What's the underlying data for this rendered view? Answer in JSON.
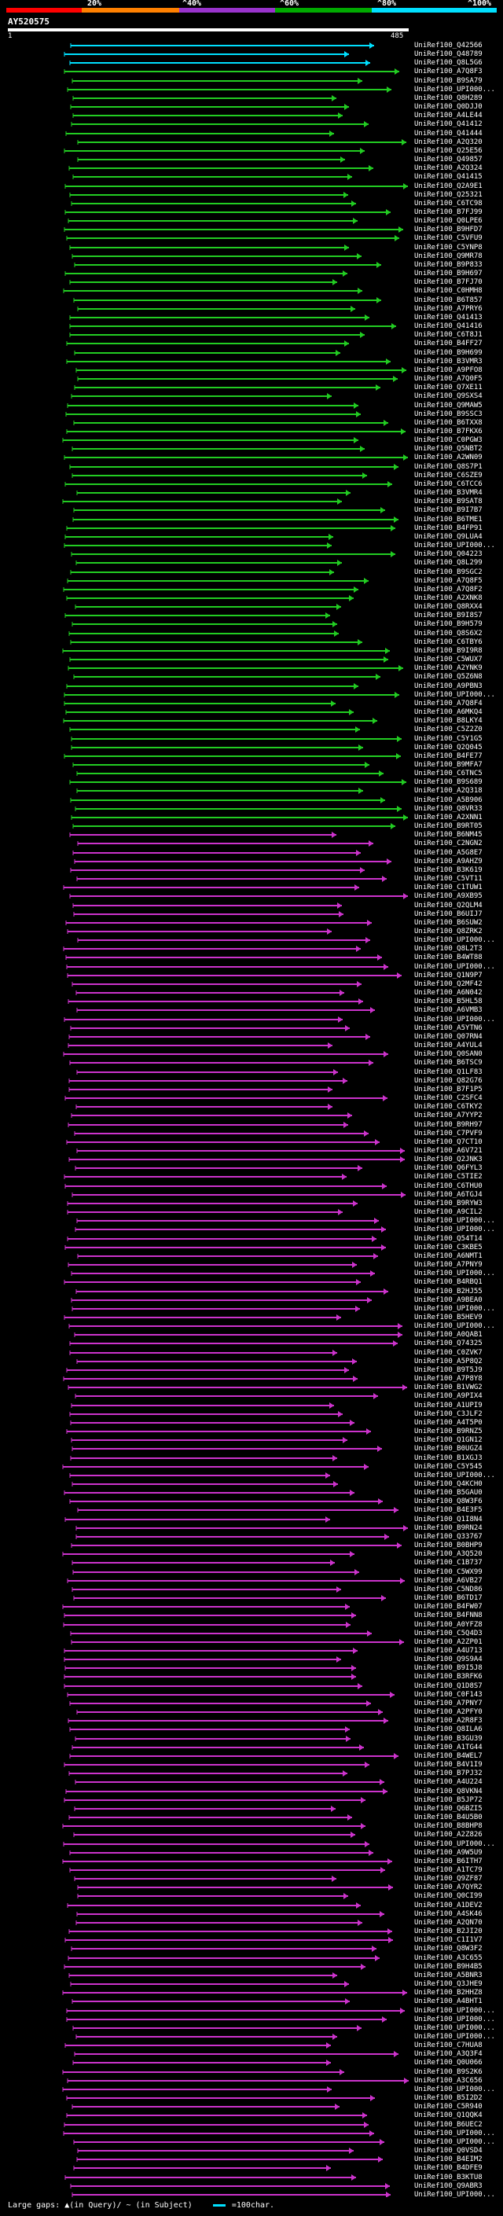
{
  "legend": {
    "ticks": [
      "20%",
      "^40%",
      "^60%",
      "^80%",
      "^100%"
    ],
    "colors": [
      "#ff0000",
      "#ff8000",
      "#9933cc",
      "#00aa00",
      "#00e0ff"
    ]
  },
  "query": {
    "id": "AY520575",
    "start": "1",
    "end": "485"
  },
  "footer": {
    "large_gaps": "Large gaps: ▲(in Query)/ ~ (in Subject)",
    "scale": "=100char."
  },
  "colors": {
    "cyan": "#00e0ff",
    "green": "#22cc22",
    "purple": "#cc33cc",
    "background": "#000000"
  },
  "hits": [
    {
      "label": "UniRef100_Q42566",
      "c": "cyan"
    },
    {
      "label": "UniRef100_Q48789",
      "c": "cyan"
    },
    {
      "label": "UniRef100_Q8L5G6",
      "c": "cyan"
    },
    {
      "label": "UniRef100_A7Q8F3",
      "c": "green"
    },
    {
      "label": "UniRef100_B9SA79",
      "c": "green"
    },
    {
      "label": "UniRef100_UPI000...",
      "c": "green"
    },
    {
      "label": "UniRef100_Q8H289",
      "c": "green"
    },
    {
      "label": "UniRef100_Q0DJJ0",
      "c": "green"
    },
    {
      "label": "UniRef100_A4LE44",
      "c": "green"
    },
    {
      "label": "UniRef100_Q41412",
      "c": "green"
    },
    {
      "label": "UniRef100_Q41444",
      "c": "green"
    },
    {
      "label": "UniRef100_A2Q320",
      "c": "green"
    },
    {
      "label": "UniRef100_Q25E56",
      "c": "green"
    },
    {
      "label": "UniRef100_Q49857",
      "c": "green"
    },
    {
      "label": "UniRef100_A2Q324",
      "c": "green"
    },
    {
      "label": "UniRef100_Q41415",
      "c": "green"
    },
    {
      "label": "UniRef100_Q2A9E1",
      "c": "green"
    },
    {
      "label": "UniRef100_Q25321",
      "c": "green"
    },
    {
      "label": "UniRef100_C6TC98",
      "c": "green"
    },
    {
      "label": "UniRef100_B7FJ99",
      "c": "green"
    },
    {
      "label": "UniRef100_Q0LPE6",
      "c": "green"
    },
    {
      "label": "UniRef100_B9HFD7",
      "c": "green"
    },
    {
      "label": "UniRef100_C5VFU9",
      "c": "green"
    },
    {
      "label": "UniRef100_C5YNP8",
      "c": "green"
    },
    {
      "label": "UniRef100_Q9MR78",
      "c": "green"
    },
    {
      "label": "UniRef100_B9P833",
      "c": "green"
    },
    {
      "label": "UniRef100_B9H697",
      "c": "green"
    },
    {
      "label": "UniRef100_B7FJ70",
      "c": "green"
    },
    {
      "label": "UniRef100_C0HMH8",
      "c": "green"
    },
    {
      "label": "UniRef100_B6T857",
      "c": "green"
    },
    {
      "label": "UniRef100_A7PRY6",
      "c": "green"
    },
    {
      "label": "UniRef100_Q41413",
      "c": "green"
    },
    {
      "label": "UniRef100_Q41416",
      "c": "green"
    },
    {
      "label": "UniRef100_C6T8J1",
      "c": "green"
    },
    {
      "label": "UniRef100_B4FF27",
      "c": "green"
    },
    {
      "label": "UniRef100_B9H699",
      "c": "green"
    },
    {
      "label": "UniRef100_B3VMR3",
      "c": "green"
    },
    {
      "label": "UniRef100_A9PFO8",
      "c": "green"
    },
    {
      "label": "UniRef100_A7Q0F5",
      "c": "green"
    },
    {
      "label": "UniRef100_Q7XE11",
      "c": "green"
    },
    {
      "label": "UniRef100_Q9SXS4",
      "c": "green"
    },
    {
      "label": "UniRef100_Q9MAW5",
      "c": "green"
    },
    {
      "label": "UniRef100_B9SSC3",
      "c": "green"
    },
    {
      "label": "UniRef100_B6TXX8",
      "c": "green"
    },
    {
      "label": "UniRef100_B7FKX6",
      "c": "green"
    },
    {
      "label": "UniRef100_C0PGW3",
      "c": "green"
    },
    {
      "label": "UniRef100_Q5NBT2",
      "c": "green"
    },
    {
      "label": "UniRef100_A2WN09",
      "c": "green"
    },
    {
      "label": "UniRef100_Q8S7P1",
      "c": "green"
    },
    {
      "label": "UniRef100_C6SZE9",
      "c": "green"
    },
    {
      "label": "UniRef100_C6TCC6",
      "c": "green"
    },
    {
      "label": "UniRef100_B3VMR4",
      "c": "green"
    },
    {
      "label": "UniRef100_B9SAT8",
      "c": "green"
    },
    {
      "label": "UniRef100_B9I7B7",
      "c": "green"
    },
    {
      "label": "UniRef100_B6TME1",
      "c": "green"
    },
    {
      "label": "UniRef100_B4FP91",
      "c": "green"
    },
    {
      "label": "UniRef100_Q9LUA4",
      "c": "green"
    },
    {
      "label": "UniRef100_UPI000...",
      "c": "green"
    },
    {
      "label": "UniRef100_Q04223",
      "c": "green"
    },
    {
      "label": "UniRef100_Q8L299",
      "c": "green"
    },
    {
      "label": "UniRef100_B9SGC2",
      "c": "green"
    },
    {
      "label": "UniRef100_A7Q8F5",
      "c": "green"
    },
    {
      "label": "UniRef100_A7Q8F2",
      "c": "green"
    },
    {
      "label": "UniRef100_A2XNK8",
      "c": "green"
    },
    {
      "label": "UniRef100_Q8RXX4",
      "c": "green"
    },
    {
      "label": "UniRef100_B9I8S7",
      "c": "green"
    },
    {
      "label": "UniRef100_B9H579",
      "c": "green"
    },
    {
      "label": "UniRef100_Q8S6X2",
      "c": "green"
    },
    {
      "label": "UniRef100_C6TBY6",
      "c": "green"
    },
    {
      "label": "UniRef100_B9I9R8",
      "c": "green"
    },
    {
      "label": "UniRef100_C5WUX7",
      "c": "green"
    },
    {
      "label": "UniRef100_A2YNK9",
      "c": "green"
    },
    {
      "label": "UniRef100_Q5Z6N8",
      "c": "green"
    },
    {
      "label": "UniRef100_A9PBN3",
      "c": "green"
    },
    {
      "label": "UniRef100_UPI000...",
      "c": "green"
    },
    {
      "label": "UniRef100_A7Q8F4",
      "c": "green"
    },
    {
      "label": "UniRef100_A6MKQ4",
      "c": "green"
    },
    {
      "label": "UniRef100_B8LKY4",
      "c": "green"
    },
    {
      "label": "UniRef100_C5Z2Z0",
      "c": "green"
    },
    {
      "label": "UniRef100_C5Y1G5",
      "c": "green"
    },
    {
      "label": "UniRef100_Q2Q045",
      "c": "green"
    },
    {
      "label": "UniRef100_B4FE77",
      "c": "green"
    },
    {
      "label": "UniRef100_B9MFA7",
      "c": "green"
    },
    {
      "label": "UniRef100_C6TNC5",
      "c": "green"
    },
    {
      "label": "UniRef100_B9S689",
      "c": "green"
    },
    {
      "label": "UniRef100_A2Q318",
      "c": "green"
    },
    {
      "label": "UniRef100_A5B906",
      "c": "green"
    },
    {
      "label": "UniRef100_Q8VR33",
      "c": "green"
    },
    {
      "label": "UniRef100_A2XNN1",
      "c": "green"
    },
    {
      "label": "UniRef100_B9RT05",
      "c": "green"
    },
    {
      "label": "UniRef100_B6NM45",
      "c": "purple"
    },
    {
      "label": "UniRef100_C2NGN2",
      "c": "purple"
    },
    {
      "label": "UniRef100_A5G8E7",
      "c": "purple"
    },
    {
      "label": "UniRef100_A9AHZ9",
      "c": "purple"
    },
    {
      "label": "UniRef100_B3K619",
      "c": "purple"
    },
    {
      "label": "UniRef100_C5VT11",
      "c": "purple"
    },
    {
      "label": "UniRef100_C1TUW1",
      "c": "purple"
    },
    {
      "label": "UniRef100_A9XB95",
      "c": "purple"
    },
    {
      "label": "UniRef100_Q2QLM4",
      "c": "purple"
    },
    {
      "label": "UniRef100_B6UIJ7",
      "c": "purple"
    },
    {
      "label": "UniRef100_B6SUW2",
      "c": "purple"
    },
    {
      "label": "UniRef100_Q8ZRK2",
      "c": "purple"
    },
    {
      "label": "UniRef100_UPI000...",
      "c": "purple"
    },
    {
      "label": "UniRef100_Q8L2T3",
      "c": "purple"
    },
    {
      "label": "UniRef100_B4WT88",
      "c": "purple"
    },
    {
      "label": "UniRef100_UPI000...",
      "c": "purple"
    },
    {
      "label": "UniRef100_Q1N9P7",
      "c": "purple"
    },
    {
      "label": "UniRef100_Q2MF42",
      "c": "purple"
    },
    {
      "label": "UniRef100_A6N042",
      "c": "purple"
    },
    {
      "label": "UniRef100_B5HL58",
      "c": "purple"
    },
    {
      "label": "UniRef100_A6VMB3",
      "c": "purple"
    },
    {
      "label": "UniRef100_UPI000...",
      "c": "purple"
    },
    {
      "label": "UniRef100_A5YTN6",
      "c": "purple"
    },
    {
      "label": "UniRef100_Q07RN4",
      "c": "purple"
    },
    {
      "label": "UniRef100_A4YUL4",
      "c": "purple"
    },
    {
      "label": "UniRef100_Q0SAN0",
      "c": "purple"
    },
    {
      "label": "UniRef100_B6TSC9",
      "c": "purple"
    },
    {
      "label": "UniRef100_Q1LF83",
      "c": "purple"
    },
    {
      "label": "UniRef100_Q82G76",
      "c": "purple"
    },
    {
      "label": "UniRef100_B7F1P5",
      "c": "purple"
    },
    {
      "label": "UniRef100_C2SFC4",
      "c": "purple"
    },
    {
      "label": "UniRef100_C6TKY2",
      "c": "purple"
    },
    {
      "label": "UniRef100_A7YYP2",
      "c": "purple"
    },
    {
      "label": "UniRef100_B9RH97",
      "c": "purple"
    },
    {
      "label": "UniRef100_C7PVF9",
      "c": "purple"
    },
    {
      "label": "UniRef100_Q7CT10",
      "c": "purple"
    },
    {
      "label": "UniRef100_A6V721",
      "c": "purple"
    },
    {
      "label": "UniRef100_Q2JNK3",
      "c": "purple"
    },
    {
      "label": "UniRef100_Q6FYL3",
      "c": "purple"
    },
    {
      "label": "UniRef100_C5TIE2",
      "c": "purple"
    },
    {
      "label": "UniRef100_C6THU0",
      "c": "purple"
    },
    {
      "label": "UniRef100_A6TGJ4",
      "c": "purple"
    },
    {
      "label": "UniRef100_B9RYW3",
      "c": "purple"
    },
    {
      "label": "UniRef100_A9CIL2",
      "c": "purple"
    },
    {
      "label": "UniRef100_UPI000...",
      "c": "purple"
    },
    {
      "label": "UniRef100_UPI000...",
      "c": "purple"
    },
    {
      "label": "UniRef100_Q54T14",
      "c": "purple"
    },
    {
      "label": "UniRef100_C3KBE5",
      "c": "purple"
    },
    {
      "label": "UniRef100_A6NMT1",
      "c": "purple"
    },
    {
      "label": "UniRef100_A7PNY9",
      "c": "purple"
    },
    {
      "label": "UniRef100_UPI000...",
      "c": "purple"
    },
    {
      "label": "UniRef100_B4RBQ1",
      "c": "purple"
    },
    {
      "label": "UniRef100_B2HJ55",
      "c": "purple"
    },
    {
      "label": "UniRef100_A9BEA0",
      "c": "purple"
    },
    {
      "label": "UniRef100_UPI000...",
      "c": "purple"
    },
    {
      "label": "UniRef100_B5HEV9",
      "c": "purple"
    },
    {
      "label": "UniRef100_UPI000...",
      "c": "purple"
    },
    {
      "label": "UniRef100_A0QAB1",
      "c": "purple"
    },
    {
      "label": "UniRef100_Q74325",
      "c": "purple"
    },
    {
      "label": "UniRef100_C0ZVK7",
      "c": "purple"
    },
    {
      "label": "UniRef100_A5P8Q2",
      "c": "purple"
    },
    {
      "label": "UniRef100_B9T5J9",
      "c": "purple"
    },
    {
      "label": "UniRef100_A7P8Y8",
      "c": "purple"
    },
    {
      "label": "UniRef100_B1VWG2",
      "c": "purple"
    },
    {
      "label": "UniRef100_A9PIX4",
      "c": "purple"
    },
    {
      "label": "UniRef100_A1UPI9",
      "c": "purple"
    },
    {
      "label": "UniRef100_C3JLF2",
      "c": "purple"
    },
    {
      "label": "UniRef100_A4T5P0",
      "c": "purple"
    },
    {
      "label": "UniRef100_B9RNZ5",
      "c": "purple"
    },
    {
      "label": "UniRef100_Q1GN12",
      "c": "purple"
    },
    {
      "label": "UniRef100_B0UGZ4",
      "c": "purple"
    },
    {
      "label": "UniRef100_B1XGJ3",
      "c": "purple"
    },
    {
      "label": "UniRef100_C5Y545",
      "c": "purple"
    },
    {
      "label": "UniRef100_UPI000...",
      "c": "purple"
    },
    {
      "label": "UniRef100_Q4KCH0",
      "c": "purple"
    },
    {
      "label": "UniRef100_B5GAU0",
      "c": "purple"
    },
    {
      "label": "UniRef100_Q8W3F6",
      "c": "purple"
    },
    {
      "label": "UniRef100_B4E3F5",
      "c": "purple"
    },
    {
      "label": "UniRef100_Q1I8N4",
      "c": "purple"
    },
    {
      "label": "UniRef100_B9RN24",
      "c": "purple"
    },
    {
      "label": "UniRef100_Q33767",
      "c": "purple"
    },
    {
      "label": "UniRef100_B0BHP9",
      "c": "purple"
    },
    {
      "label": "UniRef100_A3Q520",
      "c": "purple"
    },
    {
      "label": "UniRef100_C1B737",
      "c": "purple"
    },
    {
      "label": "UniRef100_C5WX99",
      "c": "purple"
    },
    {
      "label": "UniRef100_A6VB27",
      "c": "purple"
    },
    {
      "label": "UniRef100_C5ND86",
      "c": "purple"
    },
    {
      "label": "UniRef100_B6TD17",
      "c": "purple"
    },
    {
      "label": "UniRef100_B4FW07",
      "c": "purple"
    },
    {
      "label": "UniRef100_B4FNN8",
      "c": "purple"
    },
    {
      "label": "UniRef100_A0YFZ8",
      "c": "purple"
    },
    {
      "label": "UniRef100_C5Q4D3",
      "c": "purple"
    },
    {
      "label": "UniRef100_A2ZP01",
      "c": "purple"
    },
    {
      "label": "UniRef100_A4U713",
      "c": "purple"
    },
    {
      "label": "UniRef100_Q9S9A4",
      "c": "purple"
    },
    {
      "label": "UniRef100_B9I5J8",
      "c": "purple"
    },
    {
      "label": "UniRef100_B3RFK6",
      "c": "purple"
    },
    {
      "label": "UniRef100_Q1D8S7",
      "c": "purple"
    },
    {
      "label": "UniRef100_C0F143",
      "c": "purple"
    },
    {
      "label": "UniRef100_A7PNY7",
      "c": "purple"
    },
    {
      "label": "UniRef100_A2PFY0",
      "c": "purple"
    },
    {
      "label": "UniRef100_A2R8F3",
      "c": "purple"
    },
    {
      "label": "UniRef100_Q8ILA6",
      "c": "purple"
    },
    {
      "label": "UniRef100_B3GU39",
      "c": "purple"
    },
    {
      "label": "UniRef100_A1TG44",
      "c": "purple"
    },
    {
      "label": "UniRef100_B4WEL7",
      "c": "purple"
    },
    {
      "label": "UniRef100_B4V1I9",
      "c": "purple"
    },
    {
      "label": "UniRef100_B7PJ32",
      "c": "purple"
    },
    {
      "label": "UniRef100_A4U224",
      "c": "purple"
    },
    {
      "label": "UniRef100_Q8VKN4",
      "c": "purple"
    },
    {
      "label": "UniRef100_B5JP72",
      "c": "purple"
    },
    {
      "label": "UniRef100_Q6BZI5",
      "c": "purple"
    },
    {
      "label": "UniRef100_B4U5B0",
      "c": "purple"
    },
    {
      "label": "UniRef100_B8BHP8",
      "c": "purple"
    },
    {
      "label": "UniRef100_A2Z826",
      "c": "purple"
    },
    {
      "label": "UniRef100_UPI000...",
      "c": "purple"
    },
    {
      "label": "UniRef100_A9W5U9",
      "c": "purple"
    },
    {
      "label": "UniRef100_B6ITH7",
      "c": "purple"
    },
    {
      "label": "UniRef100_A1TC79",
      "c": "purple"
    },
    {
      "label": "UniRef100_Q9ZF87",
      "c": "purple"
    },
    {
      "label": "UniRef100_A7QYR2",
      "c": "purple"
    },
    {
      "label": "UniRef100_Q0CI99",
      "c": "purple"
    },
    {
      "label": "UniRef100_A1DEV2",
      "c": "purple"
    },
    {
      "label": "UniRef100_A4SK46",
      "c": "purple"
    },
    {
      "label": "UniRef100_A2QN70",
      "c": "purple"
    },
    {
      "label": "UniRef100_B2JI20",
      "c": "purple"
    },
    {
      "label": "UniRef100_C1I1V7",
      "c": "purple"
    },
    {
      "label": "UniRef100_Q8W3F2",
      "c": "purple"
    },
    {
      "label": "UniRef100_A3C655",
      "c": "purple"
    },
    {
      "label": "UniRef100_B9H4B5",
      "c": "purple"
    },
    {
      "label": "UniRef100_A5BNR3",
      "c": "purple"
    },
    {
      "label": "UniRef100_Q3JHE9",
      "c": "purple"
    },
    {
      "label": "UniRef100_B2HHZ8",
      "c": "purple"
    },
    {
      "label": "UniRef100_A4BHT1",
      "c": "purple"
    },
    {
      "label": "UniRef100_UPI000...",
      "c": "purple"
    },
    {
      "label": "UniRef100_UPI000...",
      "c": "purple"
    },
    {
      "label": "UniRef100_UPI000...",
      "c": "purple"
    },
    {
      "label": "UniRef100_UPI000...",
      "c": "purple"
    },
    {
      "label": "UniRef100_C7HUA8",
      "c": "purple"
    },
    {
      "label": "UniRef100_A3Q3F4",
      "c": "purple"
    },
    {
      "label": "UniRef100_Q0U066",
      "c": "purple"
    },
    {
      "label": "UniRef100_B9S2K6",
      "c": "purple"
    },
    {
      "label": "UniRef100_A3C656",
      "c": "purple"
    },
    {
      "label": "UniRef100_UPI000...",
      "c": "purple"
    },
    {
      "label": "UniRef100_B5I2D2",
      "c": "purple"
    },
    {
      "label": "UniRef100_C5R940",
      "c": "purple"
    },
    {
      "label": "UniRef100_Q1QQK4",
      "c": "purple"
    },
    {
      "label": "UniRef100_B6UEC2",
      "c": "purple"
    },
    {
      "label": "UniRef100_UPI000...",
      "c": "purple"
    },
    {
      "label": "UniRef100_UPI000...",
      "c": "purple"
    },
    {
      "label": "UniRef100_Q0VSD4",
      "c": "purple"
    },
    {
      "label": "UniRef100_B4EIM2",
      "c": "purple"
    },
    {
      "label": "UniRef100_B4DFE9",
      "c": "purple"
    },
    {
      "label": "UniRef100_B3KTU8",
      "c": "purple"
    },
    {
      "label": "UniRef100_Q9ABR3",
      "c": "purple"
    },
    {
      "label": "UniRef100_UPI000...",
      "c": "purple"
    }
  ]
}
